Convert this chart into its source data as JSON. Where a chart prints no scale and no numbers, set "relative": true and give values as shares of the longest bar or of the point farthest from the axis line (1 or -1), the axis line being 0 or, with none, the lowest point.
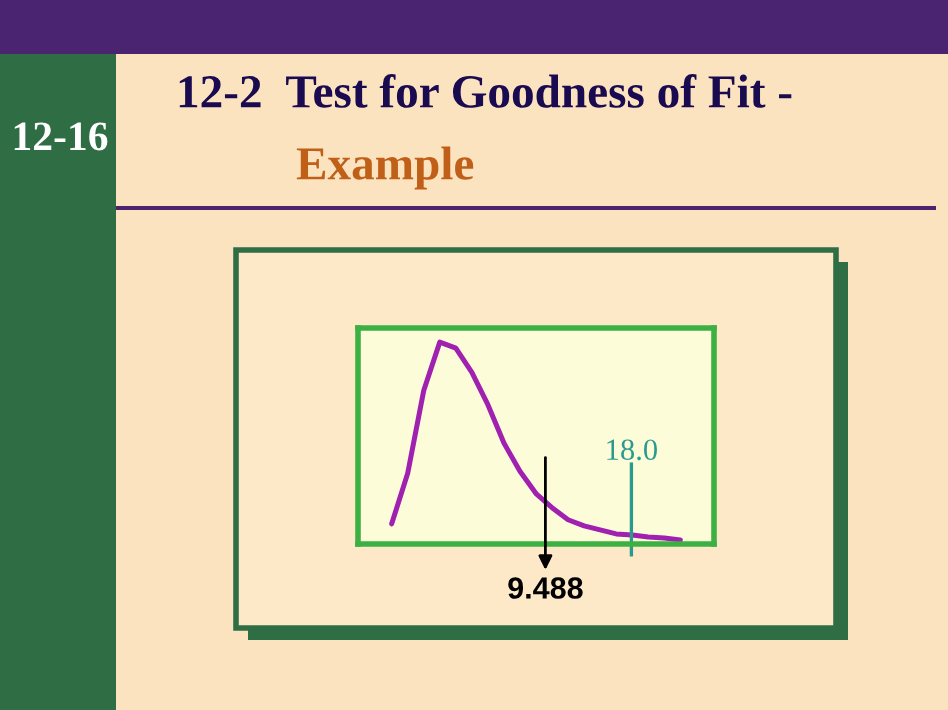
{
  "chart_data": {
    "type": "line",
    "title": "12-2  Test for Goodness of Fit -",
    "subtitle": "Example",
    "annotations": [
      "12-16",
      "9.488",
      "18.0"
    ],
    "relative": true,
    "categories": [
      null,
      null,
      null,
      null,
      null,
      null,
      null,
      null,
      null,
      null,
      null,
      null,
      null,
      null,
      null,
      null,
      null,
      null,
      null
    ],
    "series": [
      {
        "color": "#a020b0",
        "values": [
          0.1,
          0.35,
          0.76,
          1.0,
          0.97,
          0.85,
          0.69,
          0.5,
          0.36,
          0.25,
          0.18,
          0.12,
          0.09,
          0.07,
          0.05,
          0.045,
          0.035,
          0.03,
          0.02
        ]
      }
    ]
  }
}
